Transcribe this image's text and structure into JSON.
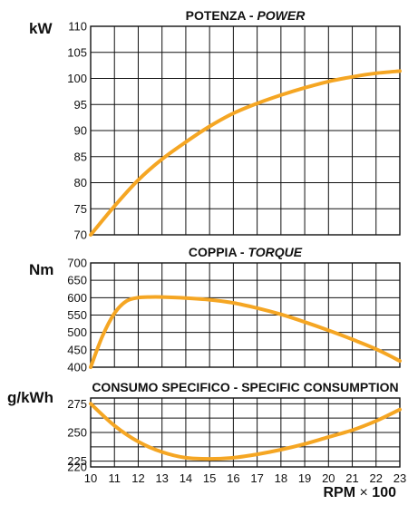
{
  "colors": {
    "curve": "#F5A623",
    "grid": "#111111",
    "background": "#ffffff"
  },
  "chart_data": [
    {
      "type": "line",
      "title": "POTENZA - ",
      "title_italic": "POWER",
      "ylabel": "kW",
      "xlabel": "RPM",
      "xlabel_times": "×",
      "xlabel_scale": "100",
      "xlim": [
        10,
        23
      ],
      "ylim": [
        70,
        110
      ],
      "yticks": [
        70,
        75,
        80,
        85,
        90,
        95,
        100,
        105,
        110
      ],
      "xticks": [
        10,
        11,
        12,
        13,
        14,
        15,
        16,
        17,
        18,
        19,
        20,
        21,
        22,
        23
      ],
      "grid": true,
      "series": [
        {
          "x": [
            10,
            11,
            12,
            13,
            14,
            15,
            16,
            17,
            18,
            19,
            20,
            21,
            22,
            23
          ],
          "y": [
            70,
            75.5,
            80.5,
            84.5,
            87.8,
            90.8,
            93.3,
            95.2,
            96.8,
            98.2,
            99.4,
            100.3,
            101,
            101.4
          ]
        }
      ]
    },
    {
      "type": "line",
      "title": "COPPIA - ",
      "title_italic": "TORQUE",
      "ylabel": "Nm",
      "xlim": [
        10,
        23
      ],
      "ylim": [
        400,
        700
      ],
      "yticks": [
        400,
        450,
        500,
        550,
        600,
        650,
        700
      ],
      "grid": true,
      "series": [
        {
          "x": [
            10,
            10.5,
            11,
            11.5,
            12,
            12.5,
            13,
            14,
            15,
            16,
            17,
            18,
            19,
            20,
            21,
            22,
            23
          ],
          "y": [
            400,
            490,
            555,
            590,
            600,
            602,
            602,
            599,
            594,
            585,
            570,
            552,
            530,
            506,
            480,
            452,
            418
          ]
        }
      ]
    },
    {
      "type": "line",
      "title": "CONSUMO SPECIFICO - SPECIFIC CONSUMPTION",
      "ylabel": "g/kWh",
      "xlim": [
        10,
        23
      ],
      "ylim": [
        220,
        280
      ],
      "yticks": [
        220,
        225,
        250,
        275
      ],
      "grid": true,
      "series": [
        {
          "x": [
            10,
            11,
            12,
            13,
            14,
            15,
            16,
            17,
            18,
            19,
            20,
            21,
            22,
            23
          ],
          "y": [
            275,
            256,
            242,
            233,
            228,
            227,
            228,
            231,
            235,
            240,
            246,
            252,
            260,
            270
          ]
        }
      ]
    }
  ]
}
